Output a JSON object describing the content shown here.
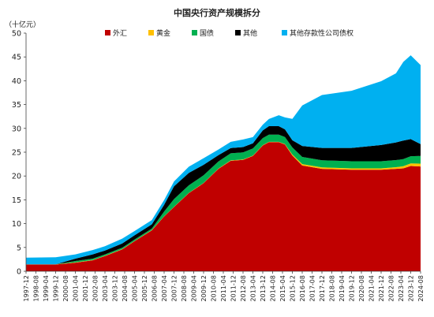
{
  "chart_data": {
    "type": "area",
    "stacked": true,
    "title": "中国央行资产规模拆分",
    "unit_label": "（十亿元）",
    "ylim": [
      0,
      50
    ],
    "yticks": [
      0,
      5,
      10,
      15,
      20,
      25,
      30,
      35,
      40,
      45,
      50
    ],
    "x_range": [
      "1997-12",
      "2024-08"
    ],
    "xtick_labels": [
      "1997-12",
      "1998-08",
      "1999-04",
      "1999-12",
      "2000-08",
      "2001-04",
      "2001-12",
      "2002-08",
      "2003-04",
      "2003-12",
      "2004-08",
      "2005-04",
      "2005-12",
      "2006-08",
      "2007-04",
      "2007-12",
      "2008-08",
      "2009-04",
      "2009-12",
      "2010-08",
      "2011-04",
      "2011-12",
      "2012-08",
      "2013-04",
      "2013-12",
      "2014-08",
      "2015-04",
      "2015-12",
      "2016-08",
      "2017-04",
      "2017-12",
      "2018-08",
      "2019-04",
      "2019-12",
      "2020-08",
      "2021-04",
      "2021-12",
      "2022-08",
      "2023-04",
      "2023-12",
      "2024-08"
    ],
    "legend_position": "top",
    "x": [
      "1997-12",
      "1999-12",
      "2001-04",
      "2002-06",
      "2003-04",
      "2004-06",
      "2005-04",
      "2006-06",
      "2007-04",
      "2007-12",
      "2008-12",
      "2009-12",
      "2010-12",
      "2011-10",
      "2012-08",
      "2013-04",
      "2013-12",
      "2014-05",
      "2015-01",
      "2015-06",
      "2015-12",
      "2016-08",
      "2017-12",
      "2019-12",
      "2021-12",
      "2022-12",
      "2023-06",
      "2023-12",
      "2024-08"
    ],
    "series": [
      {
        "name": "外汇",
        "color": "#c00000",
        "values": [
          1.4,
          1.4,
          1.8,
          2.3,
          3.2,
          4.6,
          6.3,
          8.6,
          11.5,
          13.5,
          16.4,
          18.5,
          21.5,
          23.2,
          23.4,
          24.2,
          26.4,
          27.1,
          27.1,
          26.6,
          24.3,
          22.2,
          21.5,
          21.3,
          21.3,
          21.5,
          21.6,
          22.1,
          22.0
        ]
      },
      {
        "name": "黄金",
        "color": "#ffc000",
        "values": [
          0.05,
          0.05,
          0.05,
          0.05,
          0.05,
          0.05,
          0.05,
          0.05,
          0.05,
          0.05,
          0.05,
          0.05,
          0.07,
          0.07,
          0.07,
          0.07,
          0.07,
          0.07,
          0.07,
          0.1,
          0.2,
          0.3,
          0.3,
          0.3,
          0.3,
          0.35,
          0.45,
          0.55,
          0.6
        ]
      },
      {
        "name": "国债",
        "color": "#00b050",
        "values": [
          0.0,
          0.0,
          0.3,
          0.3,
          0.3,
          0.3,
          0.3,
          0.3,
          1.0,
          1.6,
          1.6,
          1.6,
          1.5,
          1.5,
          1.5,
          1.5,
          1.5,
          1.5,
          1.5,
          1.5,
          1.5,
          1.5,
          1.5,
          1.5,
          1.5,
          1.5,
          1.5,
          1.5,
          1.6
        ]
      },
      {
        "name": "其他",
        "color": "#000000",
        "values": [
          0.0,
          0.0,
          0.5,
          0.9,
          0.8,
          0.9,
          0.9,
          0.9,
          1.4,
          2.7,
          2.6,
          2.2,
          1.3,
          1.1,
          1.1,
          1.1,
          1.6,
          1.8,
          1.8,
          1.6,
          1.5,
          2.3,
          2.6,
          2.8,
          3.4,
          3.7,
          3.9,
          3.6,
          2.5
        ]
      },
      {
        "name": "其他存款性公司债权",
        "color": "#00b0f0",
        "values": [
          1.4,
          1.5,
          0.9,
          0.9,
          0.9,
          1.0,
          0.9,
          0.9,
          1.0,
          1.0,
          1.3,
          1.4,
          1.2,
          1.3,
          1.6,
          1.3,
          1.2,
          1.5,
          2.3,
          2.5,
          4.5,
          8.5,
          11.1,
          12.0,
          13.4,
          14.5,
          16.5,
          17.6,
          16.6
        ]
      }
    ]
  }
}
